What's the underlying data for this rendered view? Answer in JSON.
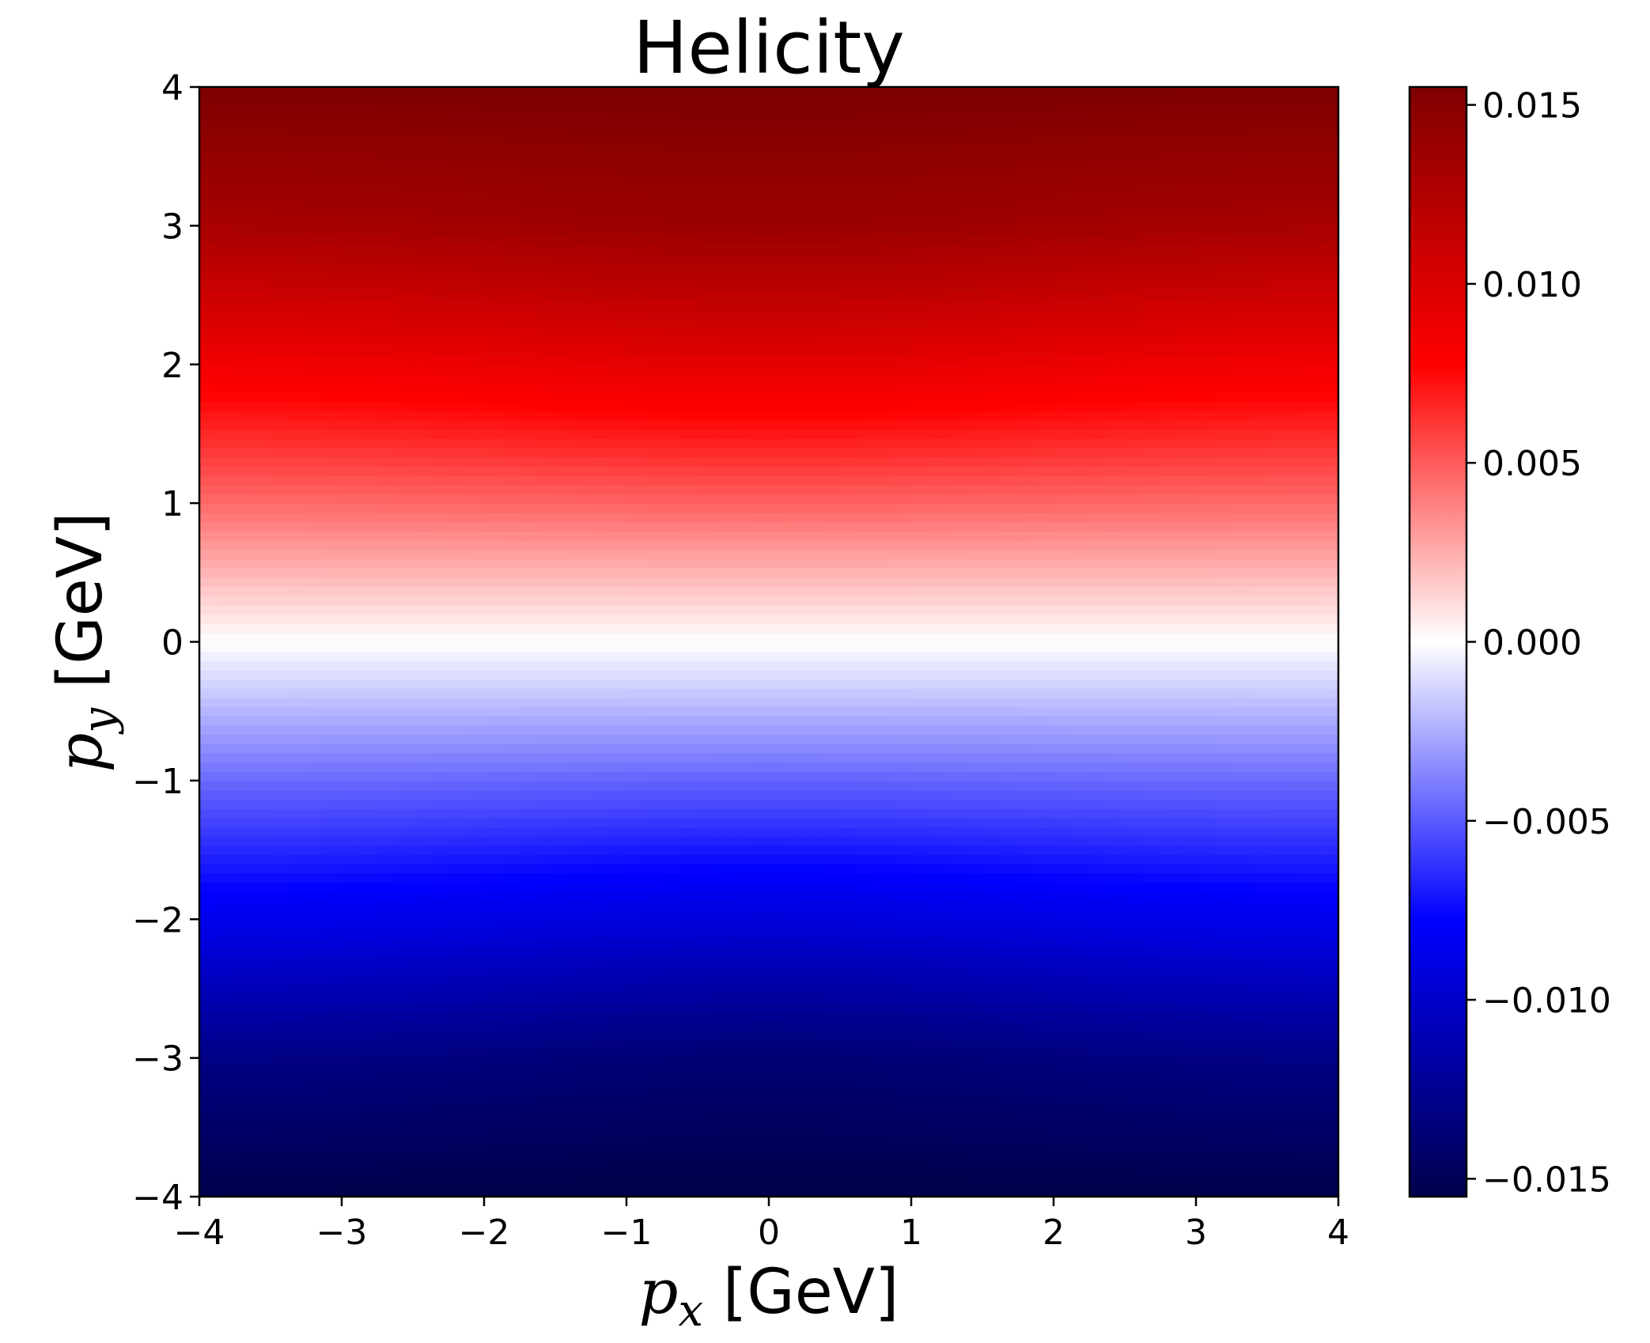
{
  "chart_data": {
    "type": "heatmap",
    "title": "Helicity",
    "xlabel": {
      "symbol": "p",
      "sub": "x",
      "unit": " [GeV]"
    },
    "ylabel": {
      "symbol": "p",
      "sub": "y",
      "unit": " [GeV]"
    },
    "xlim": [
      -4,
      4
    ],
    "ylim": [
      -4,
      4
    ],
    "x_ticks": [
      -4,
      -3,
      -2,
      -1,
      0,
      1,
      2,
      3,
      4
    ],
    "y_ticks": [
      -4,
      -3,
      -2,
      -1,
      0,
      1,
      2,
      3,
      4
    ],
    "x_tick_labels": [
      "−4",
      "−3",
      "−2",
      "−1",
      "0",
      "1",
      "2",
      "3",
      "4"
    ],
    "y_tick_labels": [
      "−4",
      "−3",
      "−2",
      "−1",
      "0",
      "1",
      "2",
      "3",
      "4"
    ],
    "colormap": "seismic",
    "colormap_stops": [
      "#00004c",
      "#0000ff",
      "#ffffff",
      "#ff0000",
      "#7f0000"
    ],
    "colorbar": {
      "range": [
        -0.0155,
        0.0155
      ],
      "ticks": [
        -0.015,
        -0.01,
        -0.005,
        0.0,
        0.005,
        0.01,
        0.015
      ],
      "tick_labels": [
        "−0.015",
        "−0.010",
        "−0.005",
        "0.000",
        "0.005",
        "0.010",
        "0.015"
      ]
    },
    "field_description_values": {
      "py_profile": [
        {
          "py": -4,
          "value": -0.0155
        },
        {
          "py": -3,
          "value": -0.013
        },
        {
          "py": -2,
          "value": -0.0085
        },
        {
          "py": -1,
          "value": -0.0045
        },
        {
          "py": 0,
          "value": 0.0
        },
        {
          "py": 1,
          "value": 0.0045
        },
        {
          "py": 2,
          "value": 0.0085
        },
        {
          "py": 3,
          "value": 0.013
        },
        {
          "py": 4,
          "value": 0.0155
        }
      ],
      "px_dependence": "nearly uniform along px; extrema of red/blue bands slightly further from zero near px = 0"
    },
    "grid": false
  }
}
